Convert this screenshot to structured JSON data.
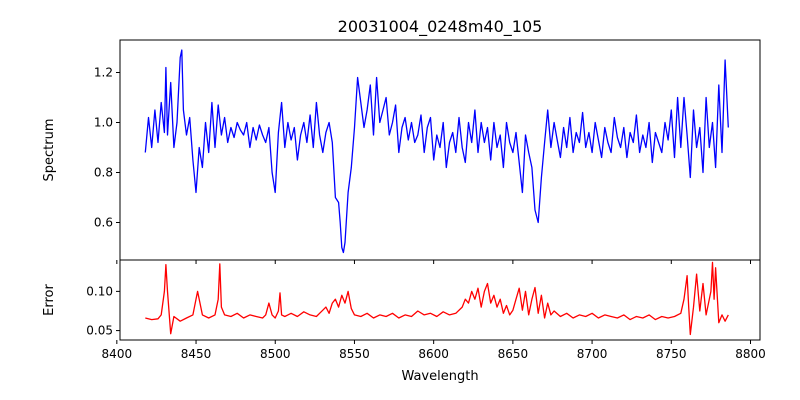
{
  "figure": {
    "title": "20031004_0248m40_105",
    "xlabel": "Wavelength"
  },
  "chart_data": [
    {
      "type": "line",
      "panel": "top",
      "ylabel": "Spectrum",
      "xlim": [
        8402,
        8806
      ],
      "ylim": [
        0.45,
        1.33
      ],
      "xticks": [
        8400,
        8450,
        8500,
        8550,
        8600,
        8650,
        8700,
        8750,
        8800
      ],
      "yticks": [
        0.6,
        0.8,
        1.0,
        1.2
      ],
      "ytick_labels": [
        "0.6",
        "0.8",
        "1.0",
        "1.2"
      ],
      "grid": false,
      "series": [
        {
          "color": "#0000ff",
          "x": [
            8418,
            8420,
            8422,
            8424,
            8426,
            8428,
            8430,
            8431,
            8432,
            8434,
            8436,
            8438,
            8440,
            8441,
            8442,
            8444,
            8446,
            8448,
            8450,
            8452,
            8454,
            8456,
            8458,
            8460,
            8462,
            8464,
            8466,
            8468,
            8470,
            8472,
            8474,
            8476,
            8478,
            8480,
            8482,
            8484,
            8486,
            8488,
            8490,
            8492,
            8494,
            8496,
            8498,
            8500,
            8502,
            8504,
            8506,
            8508,
            8510,
            8512,
            8514,
            8516,
            8518,
            8520,
            8522,
            8524,
            8526,
            8528,
            8530,
            8532,
            8534,
            8536,
            8538,
            8540,
            8541,
            8542,
            8543,
            8544,
            8546,
            8548,
            8550,
            8552,
            8554,
            8556,
            8558,
            8560,
            8562,
            8564,
            8566,
            8568,
            8570,
            8572,
            8574,
            8576,
            8578,
            8580,
            8582,
            8584,
            8586,
            8588,
            8590,
            8592,
            8594,
            8596,
            8598,
            8600,
            8602,
            8604,
            8606,
            8608,
            8610,
            8612,
            8614,
            8616,
            8618,
            8620,
            8622,
            8624,
            8626,
            8628,
            8630,
            8632,
            8634,
            8636,
            8638,
            8640,
            8642,
            8644,
            8646,
            8648,
            8650,
            8652,
            8654,
            8656,
            8658,
            8660,
            8662,
            8664,
            8666,
            8668,
            8670,
            8672,
            8674,
            8676,
            8678,
            8680,
            8682,
            8684,
            8686,
            8688,
            8690,
            8692,
            8694,
            8696,
            8698,
            8700,
            8702,
            8704,
            8706,
            8708,
            8710,
            8712,
            8714,
            8716,
            8718,
            8720,
            8722,
            8724,
            8726,
            8728,
            8730,
            8732,
            8734,
            8736,
            8738,
            8740,
            8742,
            8744,
            8746,
            8748,
            8750,
            8752,
            8754,
            8756,
            8758,
            8760,
            8762,
            8764,
            8766,
            8768,
            8770,
            8772,
            8774,
            8776,
            8778,
            8780,
            8782,
            8784,
            8786
          ],
          "y": [
            0.88,
            1.02,
            0.9,
            1.05,
            0.92,
            1.08,
            0.96,
            1.22,
            0.95,
            1.16,
            0.9,
            1.0,
            1.26,
            1.29,
            1.05,
            0.95,
            1.02,
            0.85,
            0.72,
            0.9,
            0.82,
            1.0,
            0.88,
            1.08,
            0.9,
            1.07,
            0.95,
            1.02,
            0.92,
            0.98,
            0.94,
            1.0,
            0.97,
            0.95,
            1.0,
            0.9,
            0.98,
            0.93,
            0.99,
            0.95,
            0.92,
            0.98,
            0.8,
            0.72,
            0.96,
            1.08,
            0.9,
            1.0,
            0.93,
            0.98,
            0.85,
            0.95,
            1.0,
            0.92,
            1.03,
            0.9,
            1.08,
            0.95,
            0.88,
            0.96,
            1.0,
            0.92,
            0.7,
            0.68,
            0.6,
            0.5,
            0.48,
            0.52,
            0.72,
            0.82,
            0.98,
            1.18,
            1.08,
            0.98,
            1.05,
            1.15,
            0.95,
            1.18,
            1.0,
            1.05,
            1.1,
            0.95,
            1.0,
            1.07,
            0.88,
            0.98,
            1.02,
            0.93,
            1.0,
            0.92,
            0.95,
            1.03,
            0.88,
            0.98,
            1.02,
            0.85,
            0.95,
            0.9,
            1.0,
            0.82,
            0.92,
            0.96,
            0.88,
            1.02,
            0.9,
            0.84,
            1.0,
            0.92,
            1.05,
            0.88,
            1.0,
            0.92,
            0.98,
            0.85,
            1.0,
            0.9,
            0.95,
            0.82,
            1.0,
            0.92,
            0.88,
            0.96,
            0.84,
            0.72,
            0.95,
            0.88,
            0.82,
            0.65,
            0.6,
            0.78,
            0.92,
            1.05,
            0.9,
            1.0,
            0.93,
            0.86,
            0.98,
            0.9,
            1.02,
            0.88,
            0.96,
            0.92,
            1.04,
            0.9,
            0.96,
            0.88,
            1.0,
            0.93,
            0.86,
            0.98,
            0.92,
            0.88,
            1.02,
            0.94,
            0.9,
            0.98,
            0.86,
            0.96,
            0.92,
            1.03,
            0.88,
            0.95,
            0.9,
            1.0,
            0.84,
            0.96,
            0.92,
            0.88,
            1.0,
            0.93,
            1.05,
            0.86,
            1.1,
            0.9,
            1.1,
            0.95,
            0.78,
            1.05,
            0.9,
            0.98,
            0.8,
            1.1,
            0.9,
            1.0,
            0.82,
            1.15,
            0.88,
            1.25,
            0.98
          ]
        }
      ]
    },
    {
      "type": "line",
      "panel": "bottom",
      "ylabel": "Error",
      "xlim": [
        8402,
        8806
      ],
      "ylim": [
        0.038,
        0.14
      ],
      "xticks": [
        8400,
        8450,
        8500,
        8550,
        8600,
        8650,
        8700,
        8750,
        8800
      ],
      "xtick_labels": [
        "8400",
        "8450",
        "8500",
        "8550",
        "8600",
        "8650",
        "8700",
        "8750",
        "8800"
      ],
      "yticks": [
        0.05,
        0.1
      ],
      "ytick_labels": [
        "0.05",
        "0.10"
      ],
      "grid": false,
      "series": [
        {
          "color": "#ff0000",
          "x": [
            8418,
            8422,
            8426,
            8428,
            8430,
            8431,
            8432,
            8434,
            8436,
            8440,
            8444,
            8448,
            8450,
            8451,
            8452,
            8454,
            8458,
            8462,
            8464,
            8465,
            8466,
            8468,
            8472,
            8476,
            8480,
            8484,
            8488,
            8492,
            8494,
            8496,
            8498,
            8500,
            8502,
            8503,
            8504,
            8506,
            8508,
            8510,
            8514,
            8518,
            8522,
            8526,
            8528,
            8530,
            8532,
            8534,
            8536,
            8538,
            8540,
            8542,
            8544,
            8546,
            8548,
            8550,
            8554,
            8558,
            8562,
            8566,
            8570,
            8574,
            8578,
            8582,
            8586,
            8590,
            8594,
            8598,
            8602,
            8606,
            8610,
            8614,
            8618,
            8620,
            8622,
            8624,
            8626,
            8628,
            8630,
            8632,
            8634,
            8636,
            8638,
            8640,
            8642,
            8644,
            8646,
            8648,
            8650,
            8652,
            8654,
            8656,
            8658,
            8660,
            8662,
            8664,
            8666,
            8668,
            8670,
            8672,
            8674,
            8676,
            8680,
            8684,
            8688,
            8692,
            8696,
            8700,
            8704,
            8708,
            8712,
            8716,
            8720,
            8724,
            8728,
            8732,
            8736,
            8740,
            8744,
            8748,
            8752,
            8756,
            8758,
            8760,
            8761,
            8762,
            8764,
            8766,
            8768,
            8770,
            8772,
            8774,
            8775,
            8776,
            8777,
            8778,
            8780,
            8782,
            8784,
            8786
          ],
          "y": [
            0.066,
            0.064,
            0.065,
            0.07,
            0.1,
            0.134,
            0.1,
            0.046,
            0.068,
            0.062,
            0.066,
            0.07,
            0.09,
            0.1,
            0.09,
            0.07,
            0.066,
            0.07,
            0.09,
            0.135,
            0.08,
            0.07,
            0.068,
            0.072,
            0.066,
            0.07,
            0.068,
            0.066,
            0.07,
            0.085,
            0.07,
            0.066,
            0.075,
            0.098,
            0.07,
            0.068,
            0.07,
            0.072,
            0.068,
            0.074,
            0.07,
            0.068,
            0.072,
            0.076,
            0.08,
            0.072,
            0.085,
            0.09,
            0.08,
            0.095,
            0.085,
            0.1,
            0.078,
            0.07,
            0.068,
            0.072,
            0.066,
            0.07,
            0.068,
            0.072,
            0.066,
            0.07,
            0.068,
            0.075,
            0.07,
            0.072,
            0.068,
            0.074,
            0.07,
            0.072,
            0.08,
            0.09,
            0.085,
            0.1,
            0.09,
            0.104,
            0.08,
            0.1,
            0.11,
            0.085,
            0.095,
            0.08,
            0.09,
            0.072,
            0.082,
            0.07,
            0.076,
            0.09,
            0.104,
            0.076,
            0.1,
            0.07,
            0.09,
            0.105,
            0.072,
            0.095,
            0.066,
            0.085,
            0.07,
            0.075,
            0.068,
            0.072,
            0.066,
            0.07,
            0.068,
            0.072,
            0.066,
            0.07,
            0.068,
            0.066,
            0.07,
            0.064,
            0.068,
            0.066,
            0.07,
            0.064,
            0.068,
            0.066,
            0.068,
            0.072,
            0.09,
            0.12,
            0.08,
            0.045,
            0.08,
            0.122,
            0.075,
            0.11,
            0.07,
            0.09,
            0.1,
            0.137,
            0.09,
            0.13,
            0.06,
            0.07,
            0.062,
            0.07
          ]
        }
      ]
    }
  ]
}
